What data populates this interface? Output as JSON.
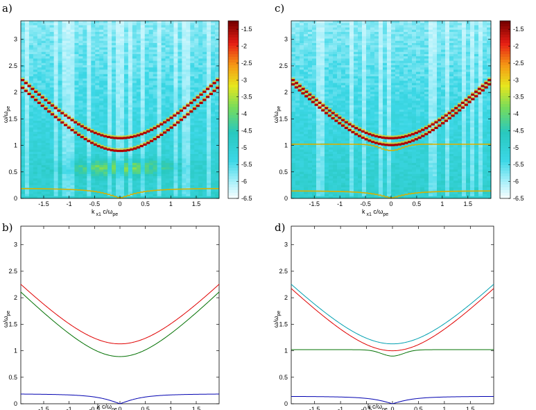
{
  "chart_data": [
    {
      "id": "a",
      "type": "heatmap",
      "panel_label": "a)",
      "xlabel": "k",
      "xlabel_sub": "x1",
      "xlabel_rest": "c/ω",
      "xlabel_rest_sub": "pe",
      "ylabel": "ω/ω",
      "ylabel_sub": "pe",
      "xlim": [
        -1.95,
        1.95
      ],
      "ylim": [
        0,
        3.35
      ],
      "xticks": [
        -1.5,
        -1,
        -0.5,
        0,
        0.5,
        1,
        1.5
      ],
      "xtick_labels": [
        "-1.5",
        "-1",
        "-0.5",
        "0",
        "0.5",
        "1",
        "1.5"
      ],
      "yticks": [
        0,
        0.5,
        1,
        1.5,
        2,
        2.5,
        3
      ],
      "ytick_labels": [
        "0",
        "0.5",
        "1",
        "1.5",
        "2",
        "2.5",
        "3"
      ],
      "colorbar": {
        "range": [
          -6.5,
          -1.25
        ],
        "ticks": [
          -1.5,
          -2,
          -2.5,
          -3,
          -3.5,
          -4,
          -4.5,
          -5,
          -5.5,
          -6,
          -6.5
        ],
        "tick_labels": [
          "-1.5",
          "-2",
          "-2.5",
          "-3",
          "-3.5",
          "-4",
          "-4.5",
          "-5",
          "-5.5",
          "-6",
          "-6.5"
        ]
      },
      "curves": [
        {
          "name": "upper branch",
          "omega0": 1.13,
          "c": 1.0,
          "color": "#c00000"
        },
        {
          "name": "lower branch",
          "omega0": 0.89,
          "c": 0.98,
          "color": "#c00000"
        },
        {
          "name": "low frequency",
          "amp": 0.2,
          "k0": 1.1,
          "color": "#c86400"
        }
      ]
    },
    {
      "id": "b",
      "type": "line",
      "panel_label": "b)",
      "xlabel": "k c/ω",
      "xlabel_sub": "pe",
      "ylabel": "ω/ω",
      "ylabel_sub": "pe",
      "xlim": [
        -1.95,
        1.95
      ],
      "ylim": [
        0,
        3.35
      ],
      "xticks": [
        -1.5,
        -1,
        -0.5,
        0,
        0.5,
        1,
        1.5
      ],
      "xtick_labels": [
        "-1.5",
        "-1",
        "-0.5",
        "0",
        "0.5",
        "1",
        "1.5"
      ],
      "yticks": [
        0,
        0.5,
        1,
        1.5,
        2,
        2.5,
        3
      ],
      "ytick_labels": [
        "0",
        "0.5",
        "1",
        "1.5",
        "2",
        "2.5",
        "3"
      ],
      "series": [
        {
          "name": "upper",
          "color": "#e00000",
          "omega0": 1.13,
          "c": 1.0
        },
        {
          "name": "middle",
          "color": "#007000",
          "omega0": 0.89,
          "c": 0.98
        },
        {
          "name": "lower",
          "color": "#0000b0",
          "amp": 0.2,
          "k0": 1.1
        }
      ]
    },
    {
      "id": "c",
      "type": "heatmap",
      "panel_label": "c)",
      "xlabel": "k",
      "xlabel_sub": "x1",
      "xlabel_rest": "c/ω",
      "xlabel_rest_sub": "pe",
      "ylabel": "ω/ω",
      "ylabel_sub": "pe",
      "xlim": [
        -1.95,
        1.95
      ],
      "ylim": [
        0,
        3.35
      ],
      "xticks": [
        -1.5,
        -1,
        -0.5,
        0,
        0.5,
        1,
        1.5
      ],
      "xtick_labels": [
        "-1.5",
        "-1",
        "-0.5",
        "0",
        "0.5",
        "1",
        "1.5"
      ],
      "yticks": [
        0,
        0.5,
        1,
        1.5,
        2,
        2.5,
        3
      ],
      "ytick_labels": [
        "0",
        "0.5",
        "1",
        "1.5",
        "2",
        "2.5",
        "3"
      ],
      "colorbar": {
        "range": [
          -6.5,
          -1.25
        ],
        "ticks": [
          -1.5,
          -2,
          -2.5,
          -3,
          -3.5,
          -4,
          -4.5,
          -5,
          -5.5,
          -6,
          -6.5
        ],
        "tick_labels": [
          "-1.5",
          "-2",
          "-2.5",
          "-3",
          "-3.5",
          "-4",
          "-4.5",
          "-5",
          "-5.5",
          "-6",
          "-6.5"
        ]
      },
      "curves": [
        {
          "name": "upper branch",
          "omega0": 1.13,
          "c": 1.0,
          "color": "#c00000"
        },
        {
          "name": "middle branch",
          "omega0": 1.0,
          "c": 0.99,
          "color": "#c00000"
        },
        {
          "name": "flat branch",
          "flat": 1.02,
          "dip": 0.12,
          "color": "#c8a000"
        },
        {
          "name": "low frequency",
          "amp": 0.15,
          "k0": 1.0,
          "color": "#c86400"
        }
      ]
    },
    {
      "id": "d",
      "type": "line",
      "panel_label": "d)",
      "xlabel": "k c/ω",
      "xlabel_sub": "pe",
      "ylabel": "ω/ω",
      "ylabel_sub": "pe",
      "xlim": [
        -1.95,
        1.95
      ],
      "ylim": [
        0,
        3.35
      ],
      "xticks": [
        -1.5,
        -1,
        -0.5,
        0,
        0.5,
        1,
        1.5
      ],
      "xtick_labels": [
        "-1.5",
        "-1",
        "-0.5",
        "0",
        "0.5",
        "1",
        "1.5"
      ],
      "yticks": [
        0,
        0.5,
        1,
        1.5,
        2,
        2.5,
        3
      ],
      "ytick_labels": [
        "0",
        "0.5",
        "1",
        "1.5",
        "2",
        "2.5",
        "3"
      ],
      "series": [
        {
          "name": "upper",
          "color": "#00a0b0",
          "omega0": 1.13,
          "c": 1.0
        },
        {
          "name": "second",
          "color": "#e00000",
          "omega0": 1.0,
          "c": 0.99
        },
        {
          "name": "flat",
          "color": "#007000",
          "flat": 1.02,
          "dip": 0.12
        },
        {
          "name": "lower",
          "color": "#0000b0",
          "amp": 0.15,
          "k0": 1.0
        }
      ]
    }
  ]
}
